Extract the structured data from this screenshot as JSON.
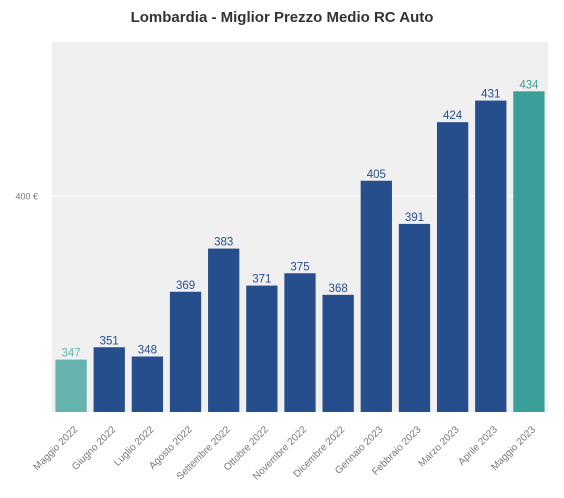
{
  "chart_data": {
    "type": "bar",
    "title": "Lombardia - Miglior Prezzo Medio RC Auto",
    "xlabel": "",
    "ylabel": "",
    "categories": [
      "Maggio 2022",
      "Giugno 2022",
      "Luglio 2022",
      "Agosto 2022",
      "Settembre 2022",
      "Ottobre 2022",
      "Novembre 2022",
      "Dicembre 2022",
      "Gennaio 2023",
      "Febbraio 2023",
      "Marzo 2023",
      "Aprile 2023",
      "Maggio 2023"
    ],
    "values": [
      347,
      351,
      348,
      369,
      383,
      371,
      375,
      368,
      405,
      391,
      424,
      431,
      434
    ],
    "value_labels": [
      "347",
      "351",
      "348",
      "369",
      "383",
      "371",
      "375",
      "368",
      "405",
      "391",
      "424",
      "431",
      "434"
    ],
    "y_ticks": [
      {
        "value": 400,
        "label": "400 €"
      }
    ],
    "ylim": [
      330,
      450
    ],
    "grid": true,
    "colors": {
      "first": "#66b2ad",
      "middle": "#274e8c",
      "last": "#3c9e98",
      "first_label": "#66b2ad",
      "middle_label": "#274e8c",
      "last_label": "#3c9e98",
      "background": "#f0f0f0",
      "gridline": "#ffffff",
      "tick_text": "#777777"
    }
  }
}
